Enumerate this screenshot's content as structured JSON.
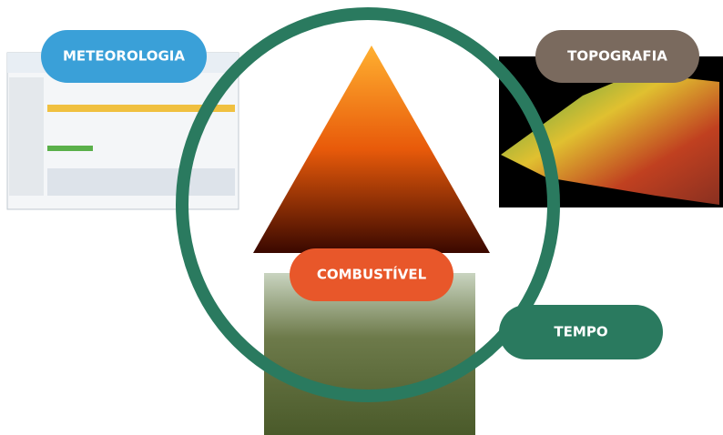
{
  "labels": {
    "meteorologia": "METEOROLOGIA",
    "topografia": "TOPOGRAFIA",
    "combustivel": "COMBUSTÍVEL",
    "tempo": "TEMPO"
  }
}
